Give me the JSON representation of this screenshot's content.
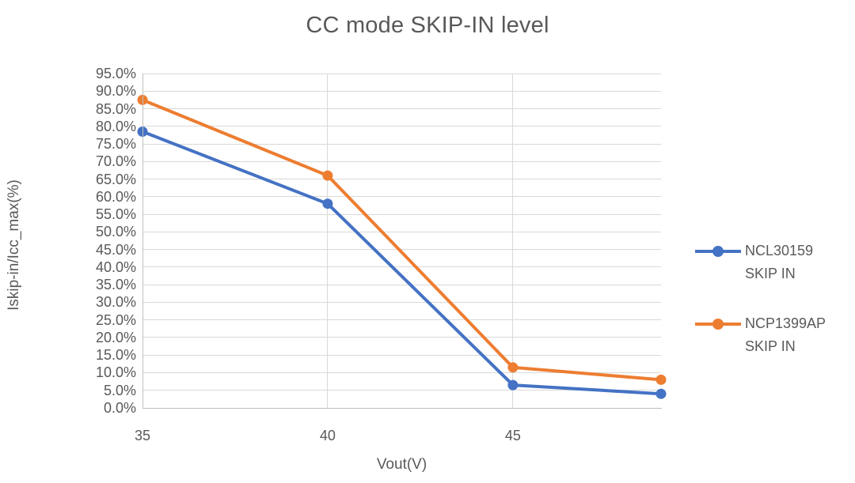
{
  "title": "CC mode SKIP-IN level",
  "chart_data": {
    "type": "line",
    "title": "CC mode SKIP-IN level",
    "xlabel": "Vout(V)",
    "ylabel": "Iskip-in/Icc_max(%)",
    "x": [
      35,
      40,
      45,
      49
    ],
    "series": [
      {
        "name": "NCL30159 SKIP IN",
        "legend_lines": [
          "NCL30159",
          "SKIP IN"
        ],
        "color": "#4472C4",
        "values": [
          78.5,
          58.0,
          6.5,
          4.0
        ]
      },
      {
        "name": "NCP1399AP SKIP IN",
        "legend_lines": [
          "NCP1399AP",
          "SKIP IN"
        ],
        "color": "#ED7D31",
        "values": [
          87.5,
          66.0,
          11.5,
          8.0
        ]
      }
    ],
    "xlim": [
      35,
      49
    ],
    "ylim": [
      0,
      95
    ],
    "y_tick_step": 5,
    "y_tick_suffix": "%",
    "y_tick_decimals": 1,
    "x_ticks": [
      35,
      40,
      45
    ],
    "grid": true,
    "legend_position": "right"
  },
  "colors": {
    "text": "#595959",
    "gridline": "#D9D9D9",
    "axis_line": "#BFBFBF",
    "background": "#FFFFFF"
  }
}
